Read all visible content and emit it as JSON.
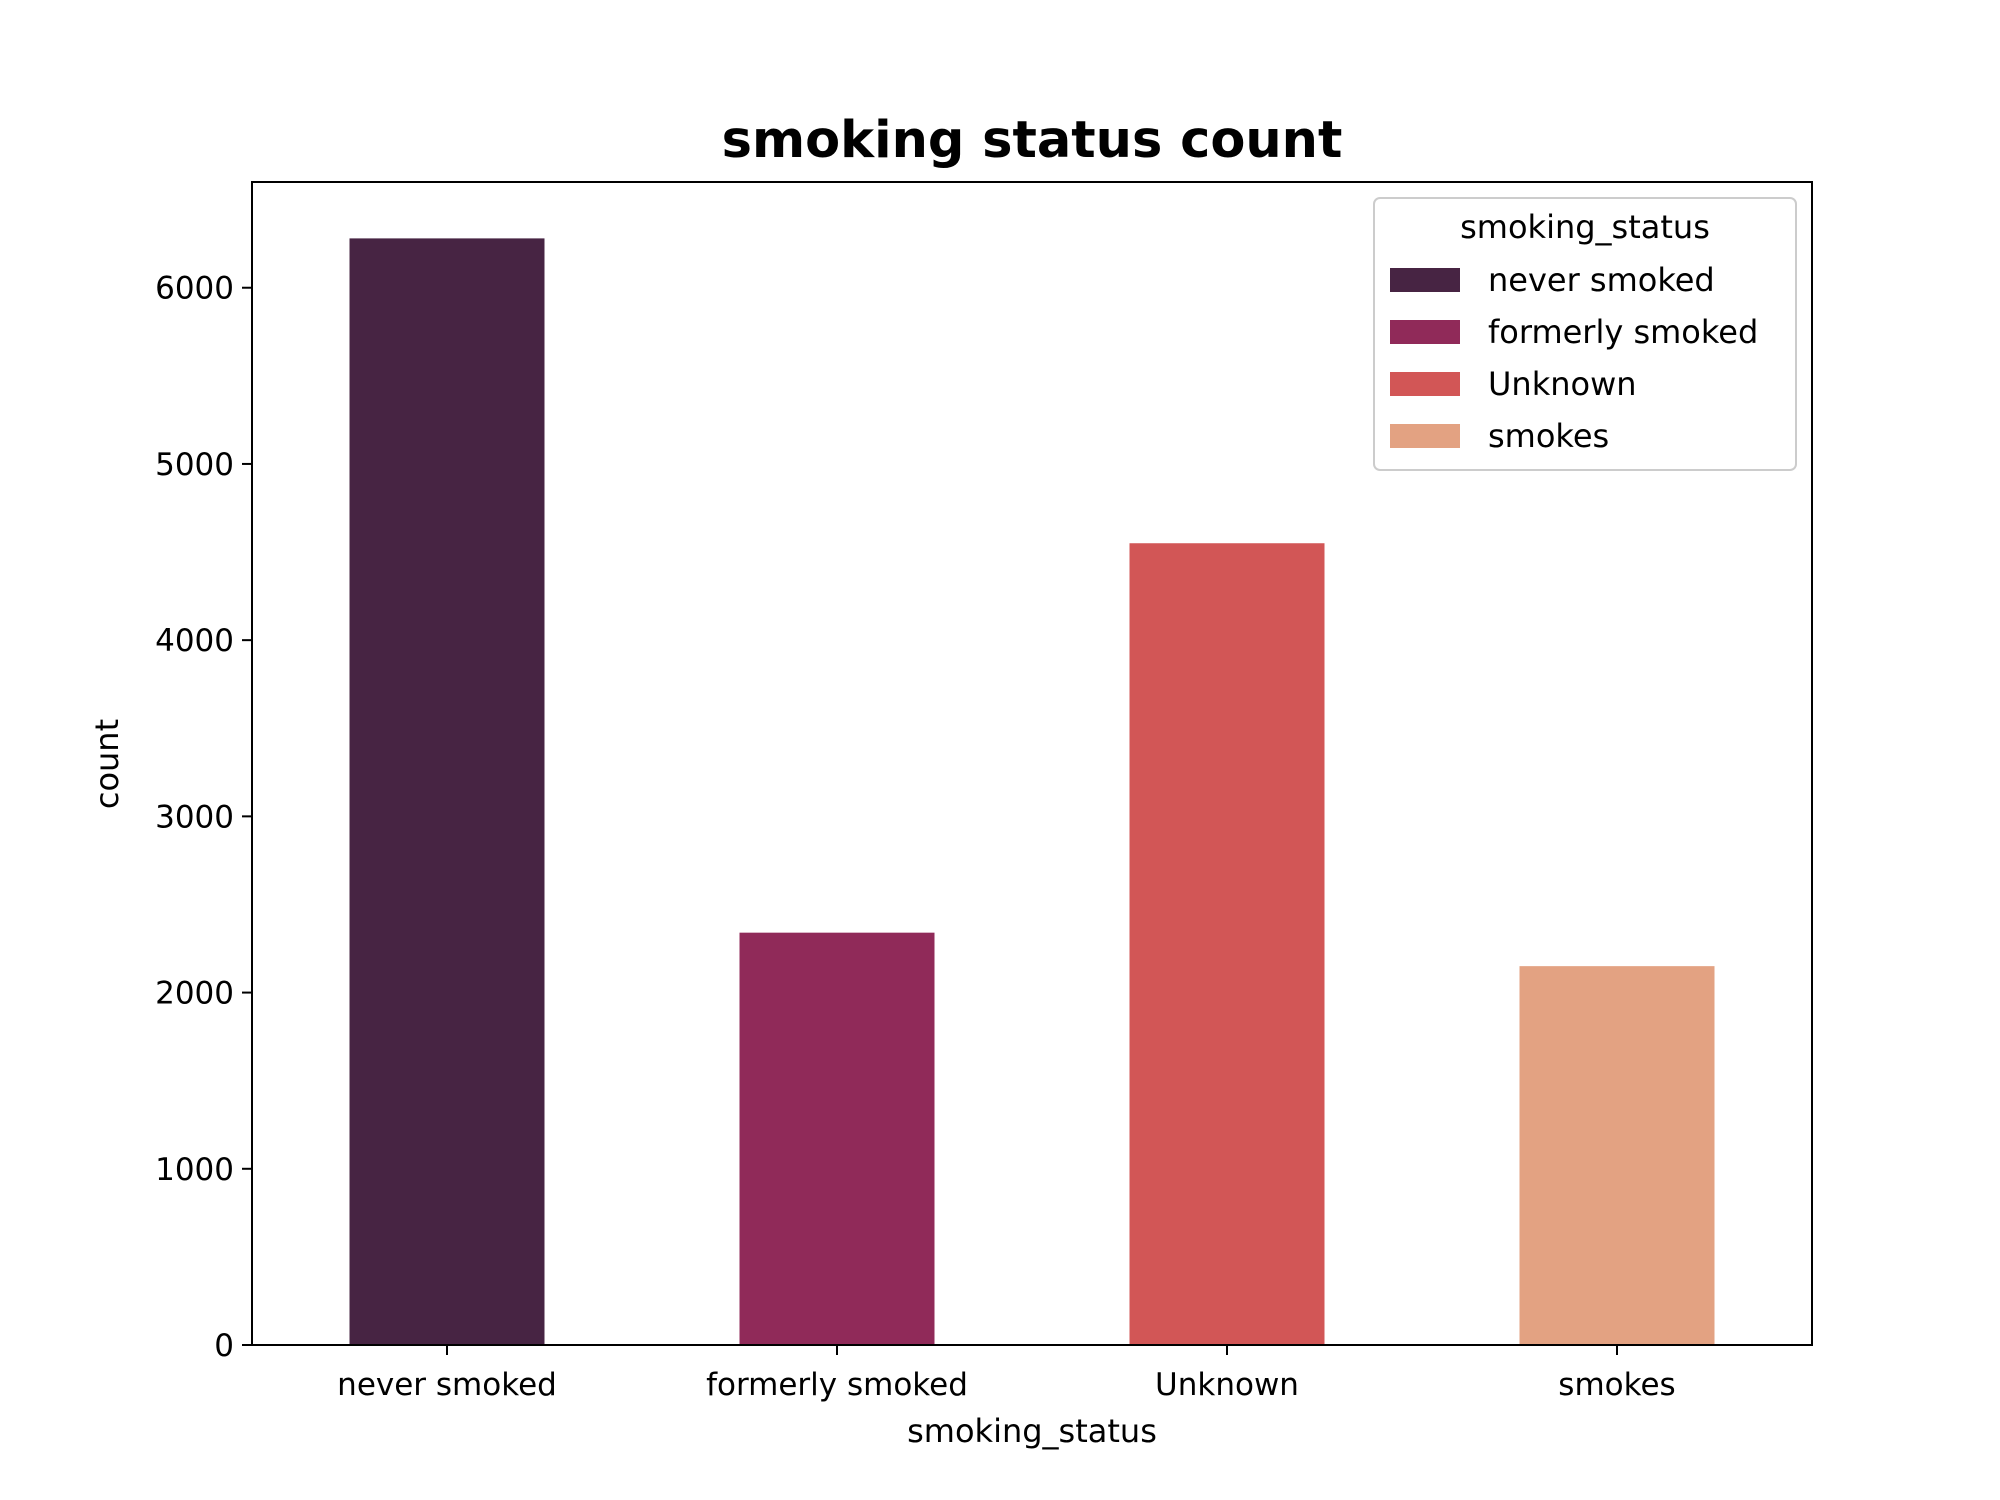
{
  "chart_data": {
    "type": "bar",
    "title": "smoking status count",
    "xlabel": "smoking_status",
    "ylabel": "count",
    "categories": [
      "never smoked",
      "formerly smoked",
      "Unknown",
      "smokes"
    ],
    "values": [
      6280,
      2340,
      4550,
      2150
    ],
    "colors": [
      "#472443",
      "#902a59",
      "#d25656",
      "#e3a282"
    ],
    "ylim": [
      0,
      6600
    ],
    "yticks": [
      0,
      1000,
      2000,
      3000,
      4000,
      5000,
      6000
    ],
    "ytick_labels": [
      "0",
      "1000",
      "2000",
      "3000",
      "4000",
      "5000",
      "6000"
    ],
    "grid": false,
    "legend": {
      "title": "smoking_status",
      "placement": "upper-right",
      "entries": [
        "never smoked",
        "formerly smoked",
        "Unknown",
        "smokes"
      ]
    }
  }
}
